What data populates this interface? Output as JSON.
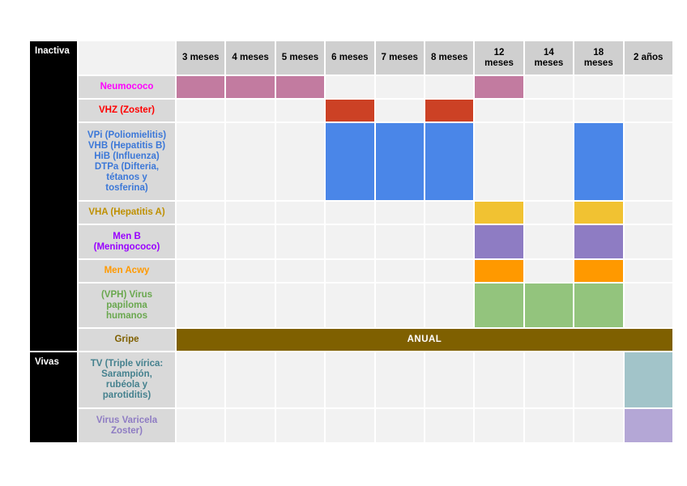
{
  "groups": {
    "inactiva": "Inactiva",
    "vivas": "Vivas"
  },
  "columns": [
    "3 meses",
    "4 meses",
    "5 meses",
    "6 meses",
    "7 meses",
    "8 meses",
    "12\nmeses",
    "14\nmeses",
    "18\nmeses",
    "2 años"
  ],
  "vaccines": [
    {
      "name": "Neumococo",
      "color": "#ff00ff",
      "fill": "#c27ba0"
    },
    {
      "name": "VHZ (Zoster)",
      "color": "#ff0000",
      "fill": "#cc4125"
    },
    {
      "name": "VPi (Poliomielitis)\nVHB (Hepatitis B)\nHiB (Influenza)\nDTPa (Difteria,\ntétanos y\ntosferina)",
      "color": "#3c78d8",
      "fill": "#4a86e8"
    },
    {
      "name": "VHA (Hepatitis A)",
      "color": "#bf9000",
      "fill": "#f1c232"
    },
    {
      "name": "Men B\n(Meningococo)",
      "color": "#9900ff",
      "fill": "#8e7cc3"
    },
    {
      "name": "Men Acwy",
      "color": "#ff9900",
      "fill": "#ff9900"
    },
    {
      "name": "(VPH) Virus\npapiloma\nhumanos",
      "color": "#6aa84f",
      "fill": "#93c47d"
    },
    {
      "name": "Gripe",
      "color": "#7f6000",
      "fill": "#7f6000"
    },
    {
      "name": "TV (Triple vírica:\nSarampión,\nrubéola y\nparotiditis)",
      "color": "#45818e",
      "fill": "#a2c4c9"
    },
    {
      "name": "Virus Varicela\nZoster)",
      "color": "#8e7cc3",
      "fill": "#b4a7d6"
    }
  ],
  "schedule": [
    [
      0,
      1,
      2,
      6
    ],
    [
      3,
      5
    ],
    [
      3,
      4,
      5,
      8
    ],
    [
      6,
      8
    ],
    [
      6,
      8
    ],
    [
      6,
      8
    ],
    [
      6,
      7,
      8
    ],
    [],
    [
      9
    ],
    [
      9
    ]
  ],
  "gripe_label": "ANUAL"
}
